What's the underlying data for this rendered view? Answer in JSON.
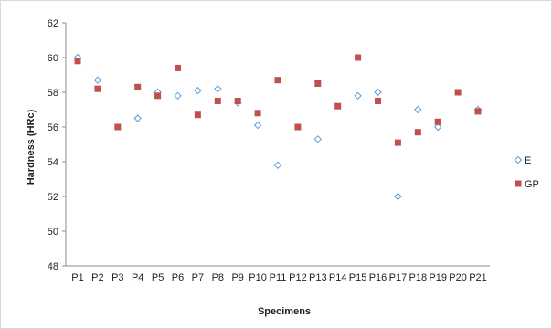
{
  "chart_data": {
    "type": "scatter",
    "title": "",
    "xlabel": "Specimens",
    "ylabel": "Hardness (HRc)",
    "ylim": [
      48,
      62
    ],
    "yticks": [
      48,
      50,
      52,
      54,
      56,
      58,
      60,
      62
    ],
    "categories": [
      "P1",
      "P2",
      "P3",
      "P4",
      "P5",
      "P6",
      "P7",
      "P8",
      "P9",
      "P10",
      "P11",
      "P12",
      "P13",
      "P14",
      "P15",
      "P16",
      "P17",
      "P18",
      "P19",
      "P20",
      "P21"
    ],
    "grid": false,
    "legend_position": "right",
    "series": [
      {
        "name": "E",
        "marker": "diamond-open",
        "color": "#5b9bd5",
        "values": [
          60.0,
          58.7,
          null,
          56.5,
          58.0,
          57.8,
          58.1,
          58.2,
          57.4,
          56.1,
          53.8,
          null,
          55.3,
          null,
          57.8,
          58.0,
          52.0,
          57.0,
          56.0,
          null,
          57.0
        ]
      },
      {
        "name": "GP",
        "marker": "square",
        "color": "#c0504d",
        "values": [
          59.8,
          58.2,
          56.0,
          58.3,
          57.8,
          59.4,
          56.7,
          57.5,
          57.5,
          56.8,
          58.7,
          56.0,
          58.5,
          57.2,
          60.0,
          57.5,
          55.1,
          55.7,
          56.3,
          58.0,
          56.9
        ]
      }
    ]
  }
}
